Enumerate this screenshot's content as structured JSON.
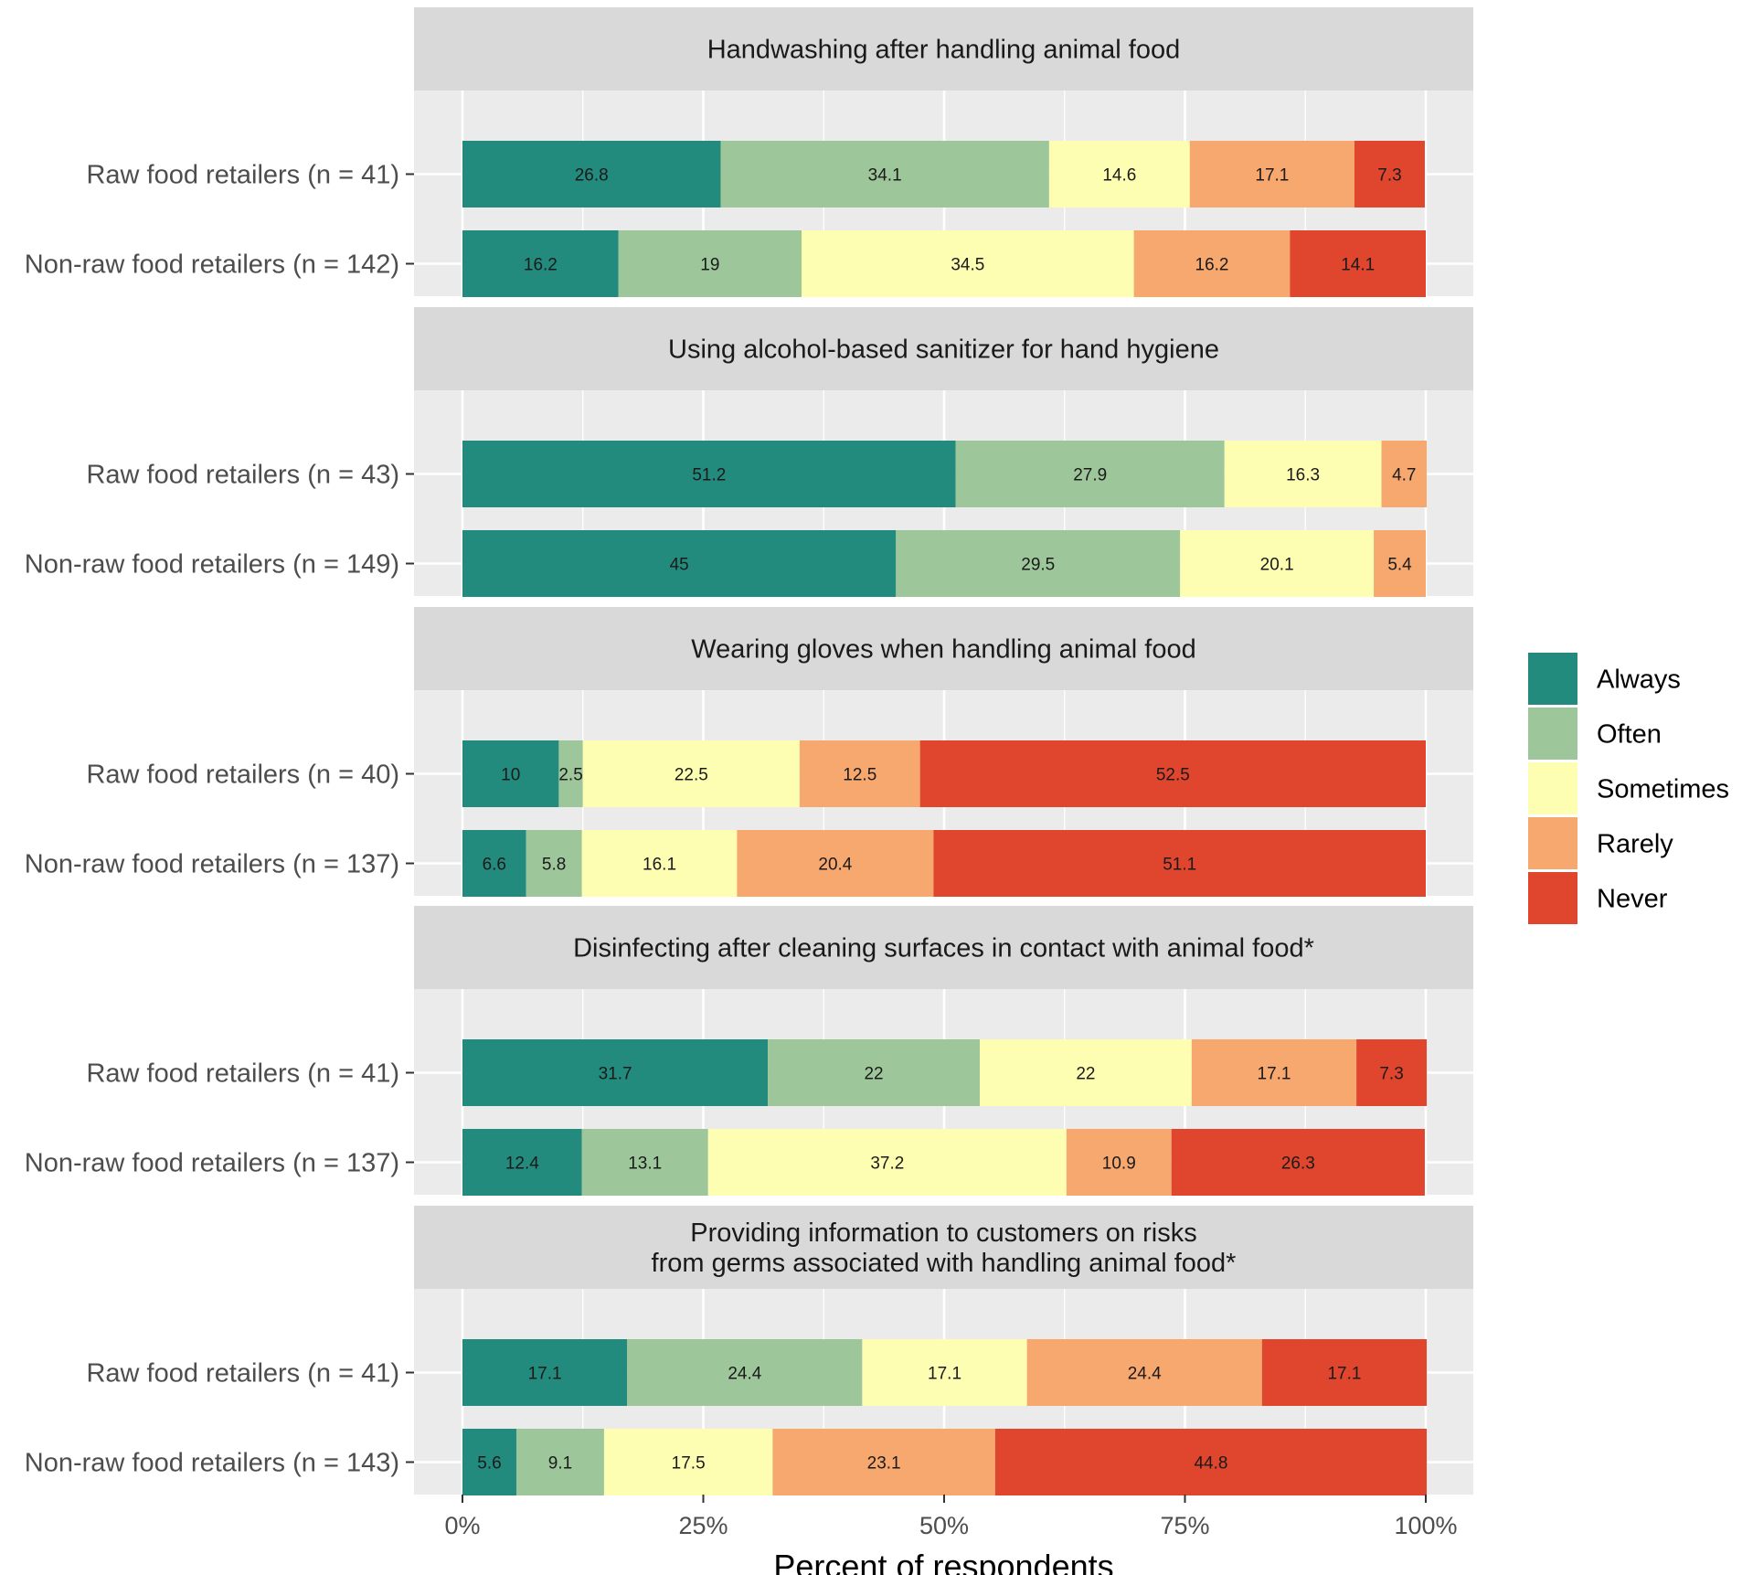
{
  "chart_data": {
    "type": "bar",
    "orientation": "horizontal-stacked",
    "xlabel": "Percent of respondents",
    "ylabel": "",
    "xlim": [
      0,
      100
    ],
    "x_ticks": [
      "0%",
      "25%",
      "50%",
      "75%",
      "100%"
    ],
    "x_tick_values": [
      0,
      25,
      50,
      75,
      100
    ],
    "legend_position": "right",
    "categories": [
      "Always",
      "Often",
      "Sometimes",
      "Rarely",
      "Never"
    ],
    "colors": {
      "Always": "#228B7D",
      "Often": "#9DC79A",
      "Sometimes": "#FEFEB2",
      "Rarely": "#F6A86E",
      "Never": "#E0452E"
    },
    "panel_background": "#EBEBEB",
    "strip_background": "#D9D9D9",
    "panels": [
      {
        "title": [
          "Handwashing after handling animal food"
        ],
        "rows": [
          {
            "label": "Raw food retailers (n = 41)",
            "values": [
              26.8,
              34.1,
              14.6,
              17.1,
              7.3
            ],
            "labels": [
              "26.8",
              "34.1",
              "14.6",
              "17.1",
              "7.3"
            ]
          },
          {
            "label": "Non-raw food retailers (n = 142)",
            "values": [
              16.2,
              19,
              34.5,
              16.2,
              14.1
            ],
            "labels": [
              "16.2",
              "19",
              "34.5",
              "16.2",
              "14.1"
            ]
          }
        ]
      },
      {
        "title": [
          "Using alcohol-based sanitizer for hand hygiene"
        ],
        "rows": [
          {
            "label": "Raw food retailers (n = 43)",
            "values": [
              51.2,
              27.9,
              16.3,
              4.7,
              0
            ],
            "labels": [
              "51.2",
              "27.9",
              "16.3",
              "4.7",
              ""
            ]
          },
          {
            "label": "Non-raw food retailers (n = 149)",
            "values": [
              45,
              29.5,
              20.1,
              5.4,
              0
            ],
            "labels": [
              "45",
              "29.5",
              "20.1",
              "5.4",
              ""
            ]
          }
        ]
      },
      {
        "title": [
          "Wearing gloves when handling animal food"
        ],
        "rows": [
          {
            "label": "Raw food retailers (n = 40)",
            "values": [
              10,
              2.5,
              22.5,
              12.5,
              52.5
            ],
            "labels": [
              "10",
              "2.5",
              "22.5",
              "12.5",
              "52.5"
            ]
          },
          {
            "label": "Non-raw food retailers (n = 137)",
            "values": [
              6.6,
              5.8,
              16.1,
              20.4,
              51.1
            ],
            "labels": [
              "6.6",
              "5.8",
              "16.1",
              "20.4",
              "51.1"
            ]
          }
        ]
      },
      {
        "title": [
          "Disinfecting after cleaning surfaces in contact with animal food*"
        ],
        "rows": [
          {
            "label": "Raw food retailers (n = 41)",
            "values": [
              31.7,
              22,
              22,
              17.1,
              7.3
            ],
            "labels": [
              "31.7",
              "22",
              "22",
              "17.1",
              "7.3"
            ]
          },
          {
            "label": "Non-raw food retailers (n = 137)",
            "values": [
              12.4,
              13.1,
              37.2,
              10.9,
              26.3
            ],
            "labels": [
              "12.4",
              "13.1",
              "37.2",
              "10.9",
              "26.3"
            ]
          }
        ]
      },
      {
        "title": [
          "Providing information to customers on risks",
          "from germs associated with handling animal food*"
        ],
        "rows": [
          {
            "label": "Raw food retailers (n = 41)",
            "values": [
              17.1,
              24.4,
              17.1,
              24.4,
              17.1
            ],
            "labels": [
              "17.1",
              "24.4",
              "17.1",
              "24.4",
              "17.1"
            ]
          },
          {
            "label": "Non-raw food retailers (n = 143)",
            "values": [
              5.6,
              9.1,
              17.5,
              23.1,
              44.8
            ],
            "labels": [
              "5.6",
              "9.1",
              "17.5",
              "23.1",
              "44.8"
            ]
          }
        ]
      }
    ]
  }
}
